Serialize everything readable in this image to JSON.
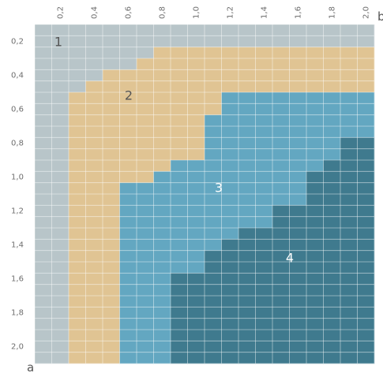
{
  "grid": {
    "x_ticks": [
      "0,2",
      "0,4",
      "0,6",
      "0,8",
      "1,0",
      "1,2",
      "1,4",
      "1,6",
      "1,8",
      "2,0"
    ],
    "y_ticks": [
      "0,2",
      "0,4",
      "0,6",
      "0,8",
      "1,0",
      "1,2",
      "1,4",
      "1,6",
      "1,8",
      "2,0"
    ],
    "x_axis_letter": "b",
    "y_axis_letter": "a"
  },
  "regions": [
    {
      "id": "1",
      "label": "1",
      "color": "#b8c5c9"
    },
    {
      "id": "2",
      "label": "2",
      "color": "#e0c493"
    },
    {
      "id": "3",
      "label": "3",
      "color": "#63a7c1"
    },
    {
      "id": "4",
      "label": "4",
      "color": "#3f7a8e"
    }
  ],
  "map": [
    "11111111111111111111",
    "11111111111111111111",
    "11111112222222222222",
    "11111122222222222222",
    "11112222222222222222",
    "11122222222222222222",
    "11222222222333333333",
    "11222222222333333333",
    "11222222223333333333",
    "11222222223333333333",
    "11222222223333333344",
    "11222222223333333344",
    "11222222333333333444",
    "11222223333333334444",
    "11222333333333334444",
    "11222333333333334444",
    "11222333333333444444",
    "11222333333333444444",
    "11222333333344444444",
    "11222333333444444444",
    "11222333334444444444",
    "11222333334444444444",
    "11222333444444444444",
    "11222333444444444444",
    "11222333444444444444",
    "11222333444444444444",
    "11222333444444444444",
    "11222333444444444444",
    "11222333444444444444",
    "11222333444444444444"
  ]
}
